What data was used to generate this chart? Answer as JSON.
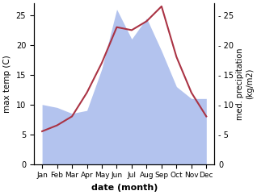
{
  "months": [
    "Jan",
    "Feb",
    "Mar",
    "Apr",
    "May",
    "Jun",
    "Jul",
    "Aug",
    "Sep",
    "Oct",
    "Nov",
    "Dec"
  ],
  "temp": [
    5.5,
    6.5,
    8.0,
    12.0,
    17.0,
    23.0,
    22.5,
    24.0,
    26.5,
    18.0,
    12.0,
    8.0
  ],
  "precip": [
    10,
    9.5,
    8.5,
    9.0,
    16,
    26,
    21,
    24.5,
    19,
    13,
    11,
    11
  ],
  "temp_color": "#aa3344",
  "precip_fill_color": "#b3c3ee",
  "ylabel_left": "max temp (C)",
  "ylabel_right": "med. precipitation\n(kg/m2)",
  "xlabel": "date (month)",
  "ylim": [
    0,
    27
  ],
  "yticks": [
    0,
    5,
    10,
    15,
    20,
    25
  ],
  "fig_width": 3.18,
  "fig_height": 2.42,
  "dpi": 100
}
